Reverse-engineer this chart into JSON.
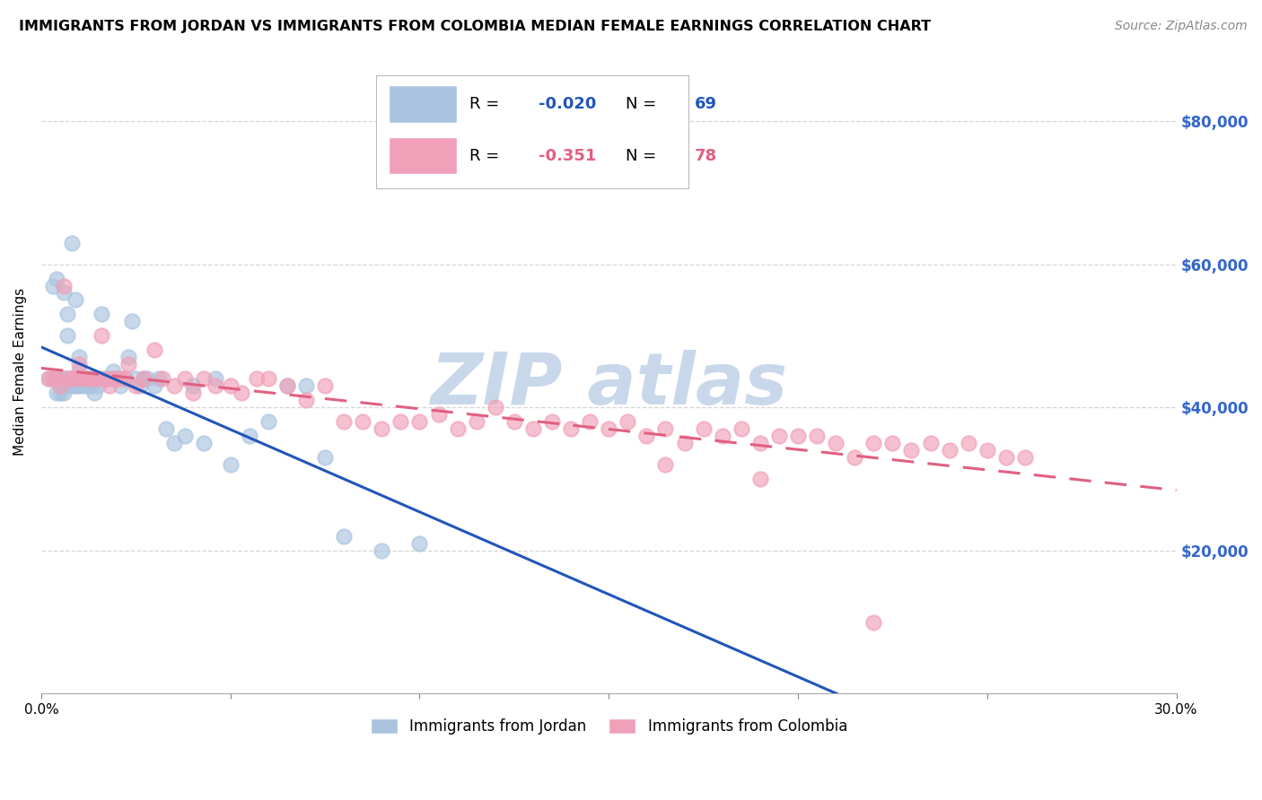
{
  "title": "IMMIGRANTS FROM JORDAN VS IMMIGRANTS FROM COLOMBIA MEDIAN FEMALE EARNINGS CORRELATION CHART",
  "source": "Source: ZipAtlas.com",
  "ylabel": "Median Female Earnings",
  "ytick_values": [
    20000,
    40000,
    60000,
    80000
  ],
  "ymin": 0,
  "ymax": 90000,
  "xmin": 0.0,
  "xmax": 0.3,
  "jordan_R": "-0.020",
  "jordan_N": 69,
  "colombia_R": "-0.351",
  "colombia_N": 78,
  "jordan_color": "#aac4e0",
  "jordan_line_color": "#2255bb",
  "colombia_color": "#f0a0b8",
  "colombia_line_color": "#e06080",
  "background_color": "#ffffff",
  "grid_color": "#cccccc",
  "watermark_text": "ZIP atlas",
  "watermark_color": "#c8d8ea",
  "title_fontsize": 11.5,
  "axis_label_fontsize": 11,
  "tick_label_fontsize": 11,
  "legend_fontsize": 13,
  "source_fontsize": 10,
  "jordan_scatter_x": [
    0.002,
    0.003,
    0.003,
    0.004,
    0.004,
    0.004,
    0.005,
    0.005,
    0.005,
    0.005,
    0.006,
    0.006,
    0.006,
    0.006,
    0.007,
    0.007,
    0.007,
    0.007,
    0.008,
    0.008,
    0.008,
    0.008,
    0.009,
    0.009,
    0.009,
    0.01,
    0.01,
    0.01,
    0.011,
    0.011,
    0.012,
    0.012,
    0.013,
    0.013,
    0.014,
    0.014,
    0.015,
    0.015,
    0.016,
    0.016,
    0.017,
    0.018,
    0.019,
    0.02,
    0.021,
    0.022,
    0.023,
    0.024,
    0.025,
    0.026,
    0.027,
    0.028,
    0.03,
    0.031,
    0.033,
    0.035,
    0.038,
    0.04,
    0.043,
    0.046,
    0.05,
    0.055,
    0.06,
    0.065,
    0.07,
    0.075,
    0.08,
    0.09,
    0.1
  ],
  "jordan_scatter_y": [
    44000,
    57000,
    44000,
    42000,
    58000,
    44000,
    43000,
    44000,
    42000,
    44000,
    56000,
    44000,
    44000,
    42000,
    53000,
    50000,
    44000,
    43000,
    63000,
    44000,
    44000,
    43000,
    55000,
    44000,
    43000,
    47000,
    45000,
    43000,
    44000,
    43000,
    44000,
    43000,
    44000,
    43000,
    44000,
    42000,
    44000,
    43000,
    53000,
    44000,
    44000,
    44000,
    45000,
    44000,
    43000,
    44000,
    47000,
    52000,
    44000,
    43000,
    44000,
    44000,
    43000,
    44000,
    37000,
    35000,
    36000,
    43000,
    35000,
    44000,
    32000,
    36000,
    38000,
    43000,
    43000,
    33000,
    22000,
    20000,
    21000
  ],
  "colombia_scatter_x": [
    0.002,
    0.003,
    0.004,
    0.005,
    0.006,
    0.007,
    0.008,
    0.009,
    0.01,
    0.011,
    0.012,
    0.013,
    0.014,
    0.015,
    0.016,
    0.017,
    0.018,
    0.019,
    0.02,
    0.021,
    0.022,
    0.023,
    0.025,
    0.027,
    0.03,
    0.032,
    0.035,
    0.038,
    0.04,
    0.043,
    0.046,
    0.05,
    0.053,
    0.057,
    0.06,
    0.065,
    0.07,
    0.075,
    0.08,
    0.085,
    0.09,
    0.095,
    0.1,
    0.105,
    0.11,
    0.115,
    0.12,
    0.125,
    0.13,
    0.135,
    0.14,
    0.145,
    0.15,
    0.155,
    0.16,
    0.165,
    0.17,
    0.175,
    0.18,
    0.185,
    0.19,
    0.195,
    0.2,
    0.205,
    0.21,
    0.215,
    0.22,
    0.225,
    0.23,
    0.235,
    0.24,
    0.245,
    0.25,
    0.255,
    0.26,
    0.165,
    0.19,
    0.22
  ],
  "colombia_scatter_y": [
    44000,
    44000,
    44000,
    43000,
    57000,
    44000,
    44000,
    44000,
    46000,
    44000,
    44000,
    44000,
    44000,
    44000,
    50000,
    44000,
    43000,
    44000,
    44000,
    44000,
    44000,
    46000,
    43000,
    44000,
    48000,
    44000,
    43000,
    44000,
    42000,
    44000,
    43000,
    43000,
    42000,
    44000,
    44000,
    43000,
    41000,
    43000,
    38000,
    38000,
    37000,
    38000,
    38000,
    39000,
    37000,
    38000,
    40000,
    38000,
    37000,
    38000,
    37000,
    38000,
    37000,
    38000,
    36000,
    37000,
    35000,
    37000,
    36000,
    37000,
    35000,
    36000,
    36000,
    36000,
    35000,
    33000,
    35000,
    35000,
    34000,
    35000,
    34000,
    35000,
    34000,
    33000,
    33000,
    32000,
    30000,
    10000
  ]
}
